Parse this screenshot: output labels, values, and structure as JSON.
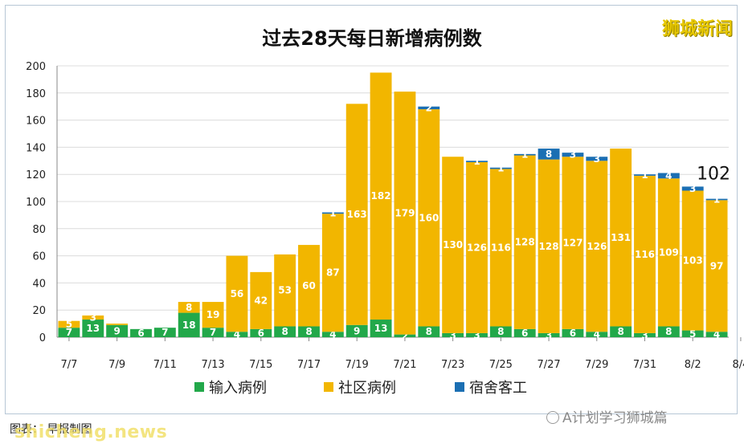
{
  "watermarks": {
    "top_right": "狮城新闻",
    "bottom_left": "shicheng.news",
    "bottom_right": "A计划学习狮城篇",
    "caption": "图表：  早报制图"
  },
  "colors": {
    "imported": "#22a84a",
    "community": "#f2b600",
    "dormitory": "#1b6fb3",
    "grid": "#dcdcdc",
    "axis": "#888888"
  },
  "chart_data": {
    "type": "bar",
    "stacked": true,
    "title": "过去28天每日新增病例数",
    "xlabel": "",
    "ylabel": "",
    "ylim": [
      0,
      200
    ],
    "yticks": [
      0,
      20,
      40,
      60,
      80,
      100,
      120,
      140,
      160,
      180,
      200
    ],
    "grid": true,
    "legend_position": "bottom",
    "x_tick_labels": [
      "7/7",
      "7/9",
      "7/11",
      "7/13",
      "7/15",
      "7/17",
      "7/19",
      "7/21",
      "7/23",
      "7/25",
      "7/27",
      "7/29",
      "7/31",
      "8/2",
      "8/4"
    ],
    "categories": [
      "7/7",
      "7/8",
      "7/9",
      "7/10",
      "7/11",
      "7/12",
      "7/13",
      "7/14",
      "7/15",
      "7/16",
      "7/17",
      "7/18",
      "7/19",
      "7/20",
      "7/21",
      "7/22",
      "7/23",
      "7/24",
      "7/25",
      "7/26",
      "7/27",
      "7/28",
      "7/29",
      "7/30",
      "7/31",
      "8/1",
      "8/2",
      "8/3"
    ],
    "series": [
      {
        "name": "输入病例",
        "values": [
          7,
          13,
          9,
          6,
          7,
          18,
          7,
          4,
          6,
          8,
          8,
          4,
          9,
          13,
          2,
          8,
          3,
          3,
          8,
          6,
          3,
          6,
          4,
          8,
          3,
          8,
          5,
          4
        ],
        "labels": [
          "7",
          "13",
          "9",
          "6",
          "7",
          "18",
          "7",
          "4",
          "6",
          "8",
          "8",
          "4",
          "9",
          "13",
          "2",
          "8",
          "3",
          "3",
          "8",
          "6",
          "3",
          "6",
          "4",
          "8",
          "3",
          "8",
          "5",
          "4"
        ]
      },
      {
        "name": "社区病例",
        "values": [
          5,
          3,
          1,
          0,
          0,
          8,
          19,
          56,
          42,
          53,
          60,
          87,
          163,
          182,
          179,
          160,
          130,
          126,
          116,
          128,
          128,
          127,
          126,
          131,
          116,
          109,
          103,
          97
        ],
        "labels": [
          "5",
          "3",
          "",
          "",
          "",
          "8",
          "19",
          "56",
          "42",
          "53",
          "60",
          "87",
          "163",
          "182",
          "179",
          "160",
          "130",
          "126",
          "116",
          "128",
          "128",
          "127",
          "126",
          "131",
          "116",
          "109",
          "103",
          "97"
        ]
      },
      {
        "name": "宿舍客工",
        "values": [
          0,
          0,
          0,
          0,
          0,
          0,
          0,
          0,
          0,
          0,
          0,
          1,
          0,
          0,
          0,
          2,
          0,
          1,
          1,
          1,
          8,
          3,
          3,
          0,
          1,
          4,
          3,
          1
        ],
        "labels": [
          "",
          "",
          "",
          "",
          "",
          "",
          "",
          "",
          "",
          "",
          "",
          "1",
          "",
          "",
          "",
          "2",
          "",
          "1",
          "1",
          "1",
          "8",
          "3",
          "3",
          "",
          "1",
          "4",
          "3",
          "1"
        ]
      }
    ],
    "annotations": [
      {
        "category": "8/3",
        "text": "102"
      }
    ]
  }
}
